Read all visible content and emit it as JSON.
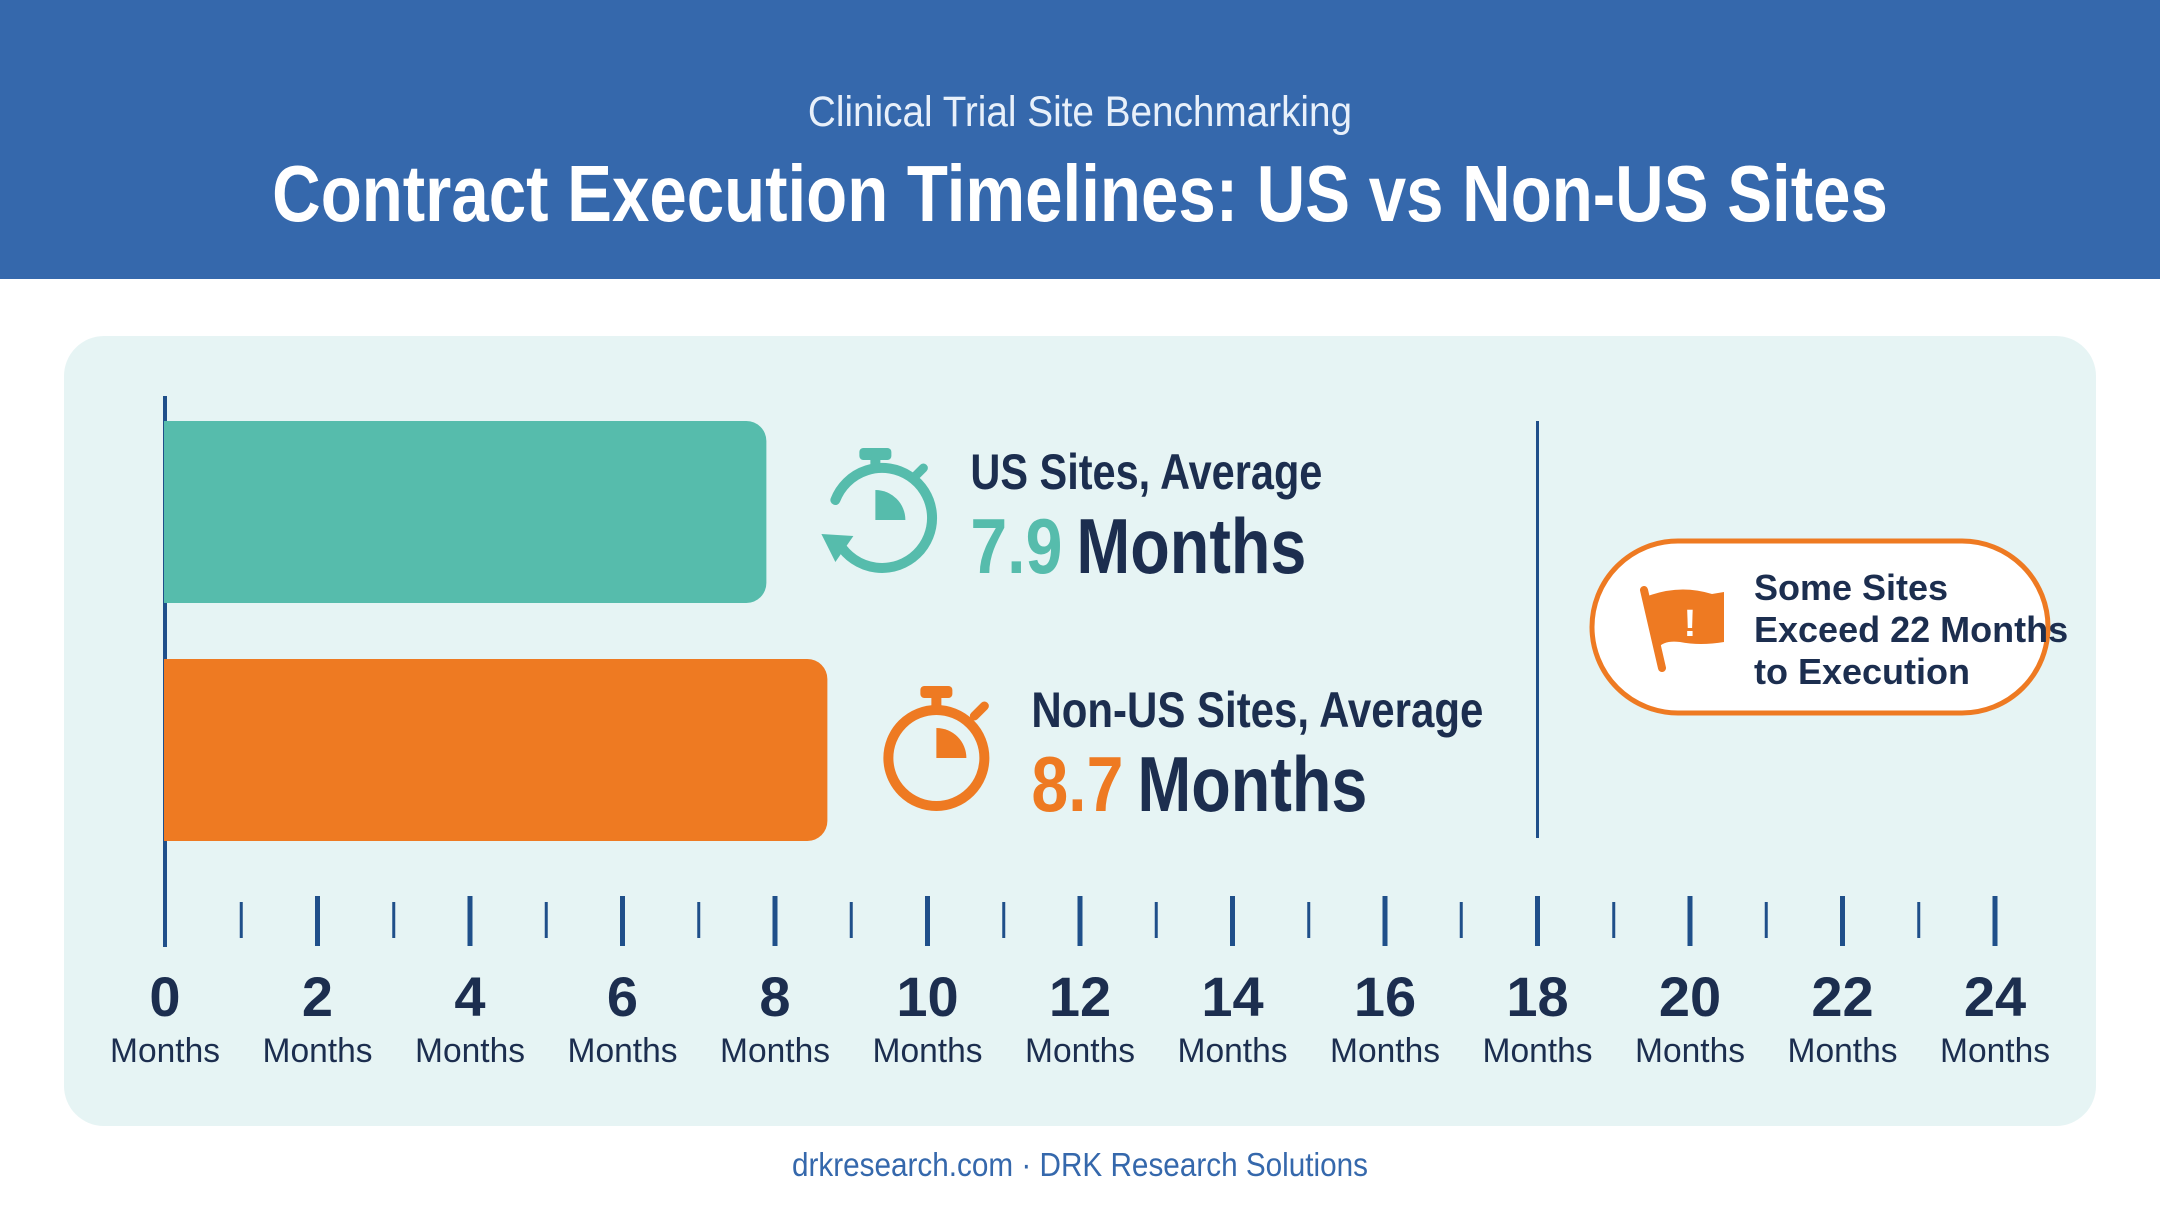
{
  "header": {
    "subtitle": "Clinical Trial Site Benchmarking",
    "title": "Contract Execution Timelines: US vs Non-US Sites"
  },
  "footer": {
    "text": "drkresearch.com · DRK Research Solutions"
  },
  "callout": {
    "lines": [
      "Some Sites",
      "Exceed 22 Months",
      "to Execution"
    ],
    "icon": "flag-alert-icon",
    "color": "#ee7a22"
  },
  "chart_data": {
    "type": "bar",
    "orientation": "horizontal",
    "xlim": [
      0,
      24
    ],
    "tick_unit": "Months",
    "ticks": [
      "0",
      "2",
      "4",
      "6",
      "8",
      "10",
      "12",
      "14",
      "16",
      "18",
      "20",
      "22",
      "24"
    ],
    "reference_line_x": 18,
    "series": [
      {
        "name": "US Sites, Average",
        "value": 7.9,
        "value_text": "7.9",
        "unit_text": "Months",
        "color": "#56bcac",
        "icon": "stopwatch-refresh-icon"
      },
      {
        "name": "Non-US Sites, Average",
        "value": 8.7,
        "value_text": "8.7",
        "unit_text": "Months",
        "color": "#ee7a22",
        "icon": "stopwatch-icon"
      }
    ]
  },
  "colors": {
    "header": "#3568ac",
    "panel": "#e6f4f4",
    "navy": "#1c2e4f"
  }
}
